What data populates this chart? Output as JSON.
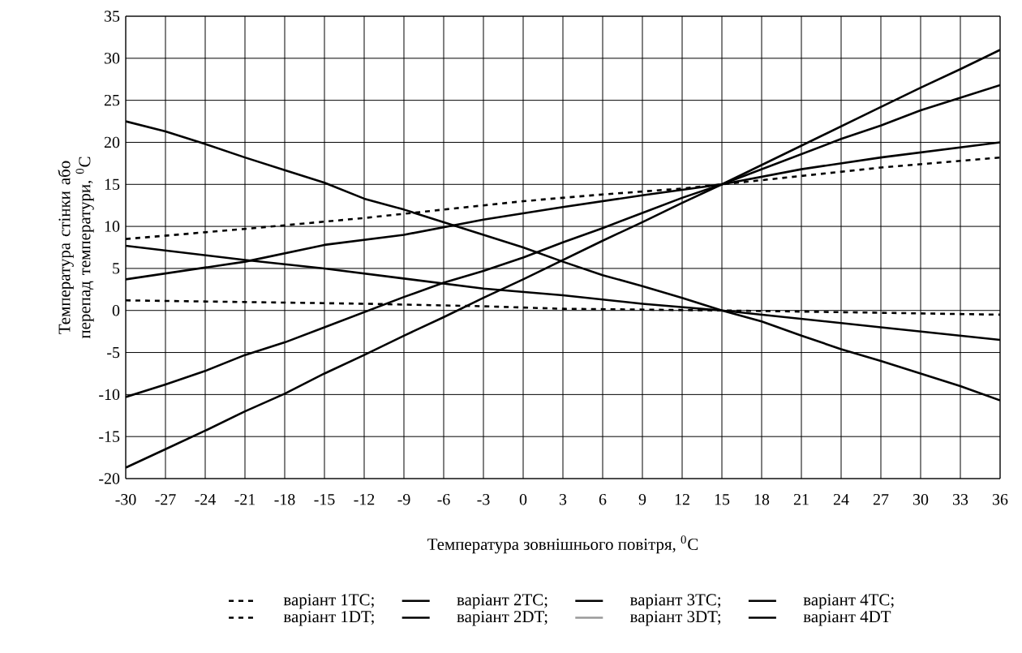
{
  "chart_data": {
    "type": "line",
    "xlabel": "Температура зовнішнього повітря, $^{0}$C",
    "ylabel": "Температура стінки або перепад температури, $^{0}$C",
    "xlim": [
      -30,
      36
    ],
    "ylim": [
      -20,
      35
    ],
    "xticks": [
      -30,
      -27,
      -24,
      -21,
      -18,
      -15,
      -12,
      -9,
      -6,
      -3,
      0,
      3,
      6,
      9,
      12,
      15,
      18,
      21,
      24,
      27,
      30,
      33,
      36
    ],
    "yticks": [
      -20,
      -15,
      -10,
      -5,
      0,
      5,
      10,
      15,
      20,
      25,
      30,
      35
    ],
    "grid": true,
    "legend": "bottom",
    "marker": "none",
    "series": [
      {
        "name": "варіант 1TC;",
        "color": "#000000",
        "line_style": "dotted",
        "x": [
          -30,
          -21,
          -12,
          -3,
          0,
          6,
          12,
          15,
          21,
          27,
          36
        ],
        "values": [
          8.5,
          9.7,
          11,
          12.5,
          13,
          13.8,
          14.5,
          15,
          16,
          17,
          18.2
        ]
      },
      {
        "name": "варіант 2TC;",
        "color": "#000000",
        "line_style": "solid",
        "x": [
          -30,
          -21,
          -15,
          -9,
          -3,
          3,
          9,
          15,
          21,
          27,
          36
        ],
        "values": [
          3.7,
          5.8,
          7.8,
          9,
          10.8,
          12.3,
          13.7,
          15,
          16.8,
          18.2,
          20
        ]
      },
      {
        "name": "варіант 3TC;",
        "color": "#000000",
        "line_style": "solid",
        "x": [
          -30,
          -27,
          -24,
          -21,
          -18,
          -15,
          -12,
          -9,
          -6,
          -3,
          0,
          3,
          6,
          9,
          12,
          15,
          18,
          21,
          24,
          27,
          30,
          33,
          36
        ],
        "values": [
          -18.7,
          -16.5,
          -14.3,
          -12,
          -9.9,
          -7.5,
          -5.3,
          -3,
          -0.8,
          1.5,
          3.7,
          6,
          8.3,
          10.5,
          12.8,
          15,
          17.3,
          19.6,
          21.9,
          24.2,
          26.5,
          28.7,
          31
        ]
      },
      {
        "name": "варіант 4TC;",
        "color": "#000000",
        "line_style": "solid",
        "x": [
          -30,
          -27,
          -24,
          -21,
          -18,
          -15,
          -12,
          -9,
          -6,
          -3,
          0,
          3,
          6,
          9,
          12,
          15,
          18,
          21,
          24,
          27,
          30,
          33,
          36
        ],
        "values": [
          -10.3,
          -8.8,
          -7.2,
          -5.3,
          -3.8,
          -2,
          -0.2,
          1.6,
          3.3,
          4.7,
          6.3,
          8.1,
          9.8,
          11.6,
          13.4,
          15,
          16.8,
          18.6,
          20.4,
          22,
          23.8,
          25.3,
          26.8
        ]
      },
      {
        "name": "варіант 1DT;",
        "color": "#000000",
        "line_style": "dotted",
        "x": [
          -30,
          -21,
          -12,
          -3,
          3,
          15,
          24,
          36
        ],
        "values": [
          1.2,
          1,
          0.8,
          0.5,
          0.2,
          0,
          -0.2,
          -0.5
        ]
      },
      {
        "name": "варіант 2DT;",
        "color": "#000000",
        "line_style": "solid",
        "x": [
          -30,
          -21,
          -15,
          -9,
          -3,
          3,
          9,
          15,
          21,
          27,
          36
        ],
        "values": [
          7.7,
          6,
          5,
          3.8,
          2.6,
          1.8,
          0.8,
          0,
          -1,
          -2,
          -3.5
        ]
      },
      {
        "name": "варіант 3DT;",
        "color": "#999999",
        "line_style": "solid"
      },
      {
        "name": "варіант 4DT",
        "color": "#000000",
        "line_style": "solid",
        "x": [
          -30,
          -27,
          -24,
          -21,
          -18,
          -15,
          -12,
          -9,
          -6,
          -3,
          0,
          3,
          6,
          9,
          12,
          15,
          18,
          21,
          24,
          27,
          30,
          33,
          36
        ],
        "values": [
          22.5,
          21.3,
          19.8,
          18.2,
          16.7,
          15.2,
          13.3,
          12,
          10.5,
          9,
          7.5,
          5.8,
          4.2,
          2.9,
          1.5,
          0,
          -1.3,
          -3,
          -4.6,
          -6,
          -7.5,
          -9,
          -10.7
        ]
      }
    ]
  }
}
